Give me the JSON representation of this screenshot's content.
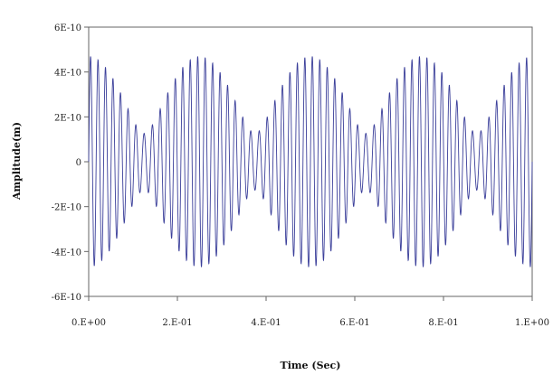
{
  "chart_data": {
    "type": "line",
    "title": "",
    "xlabel": "Time (Sec)",
    "ylabel": "Amplitude(m)",
    "xlim": [
      0,
      1
    ],
    "ylim": [
      -6e-10,
      6e-10
    ],
    "x_tick_labels": [
      "0.E+00",
      "2.E-01",
      "4.E-01",
      "6.E-01",
      "8.E-01",
      "1.E+00"
    ],
    "x_tick_values": [
      0,
      0.2,
      0.4,
      0.6,
      0.8,
      1.0
    ],
    "y_tick_labels": [
      "6E-10",
      "4E-10",
      "2E-10",
      "0",
      "-2E-10",
      "-4E-10",
      "-6E-10"
    ],
    "y_tick_values": [
      6e-10,
      4e-10,
      2e-10,
      0,
      -2e-10,
      -4e-10,
      -6e-10
    ],
    "grid": false,
    "series": [
      {
        "color": "#3b3f9a",
        "amplitude": 4.7e-10,
        "carrier_cycles": 60,
        "beat_modulation": "envelope oscillates between about 1.0E-10 and 4.7E-10 with 4 beats across 0 to 1 s"
      }
    ]
  }
}
